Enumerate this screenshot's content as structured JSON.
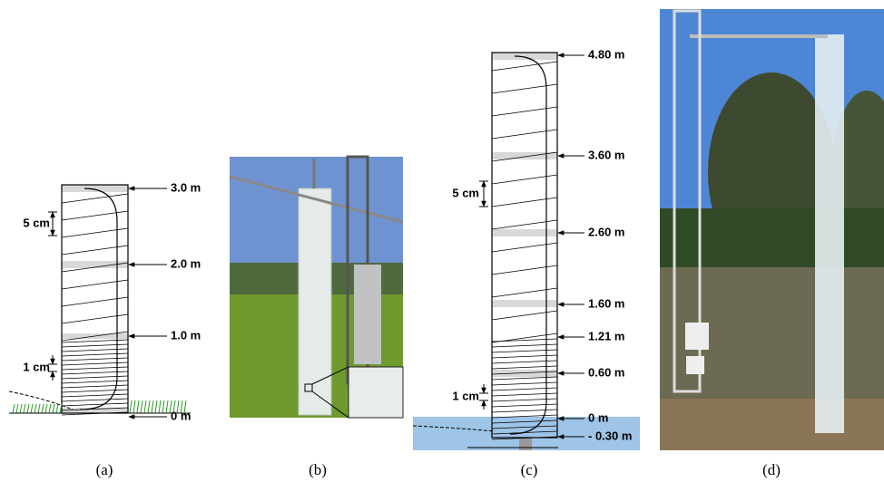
{
  "panels": [
    {
      "caption": "(a)",
      "heights": [
        "3.0 m",
        "2.0 m",
        "1.0 m",
        "0 m"
      ],
      "spacings": [
        "5 cm",
        "1 cm"
      ]
    },
    {
      "caption": "(b)"
    },
    {
      "caption": "(c)",
      "heights": [
        "4.80 m",
        "3.60 m",
        "2.60 m",
        "1.60 m",
        "1.21 m",
        "0.60 m",
        "0 m",
        "- 0.30 m"
      ],
      "spacings": [
        "5 cm",
        "1 cm"
      ]
    },
    {
      "caption": "(d)"
    }
  ]
}
